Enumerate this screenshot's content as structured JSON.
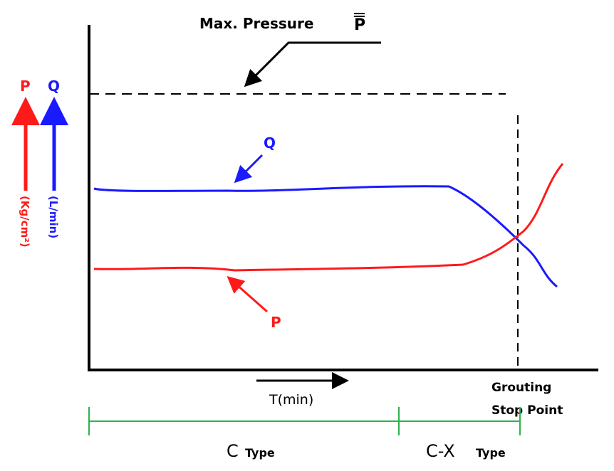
{
  "title": {
    "text": "Max. Pressure",
    "symbol": "P"
  },
  "y_axis": {
    "p_label": "P",
    "q_label": "Q",
    "p_unit": "(Kg/cm²)",
    "q_unit": "(L/min)"
  },
  "curves": {
    "q_label": "Q",
    "p_label": "P"
  },
  "x_axis": {
    "label": "T(min)"
  },
  "stop_point": {
    "lines": [
      "Grouting",
      "Stop Point"
    ]
  },
  "ranges": [
    {
      "letter": "C",
      "suffix": "Type"
    },
    {
      "letter": "C-X",
      "suffix": "Type"
    }
  ]
}
